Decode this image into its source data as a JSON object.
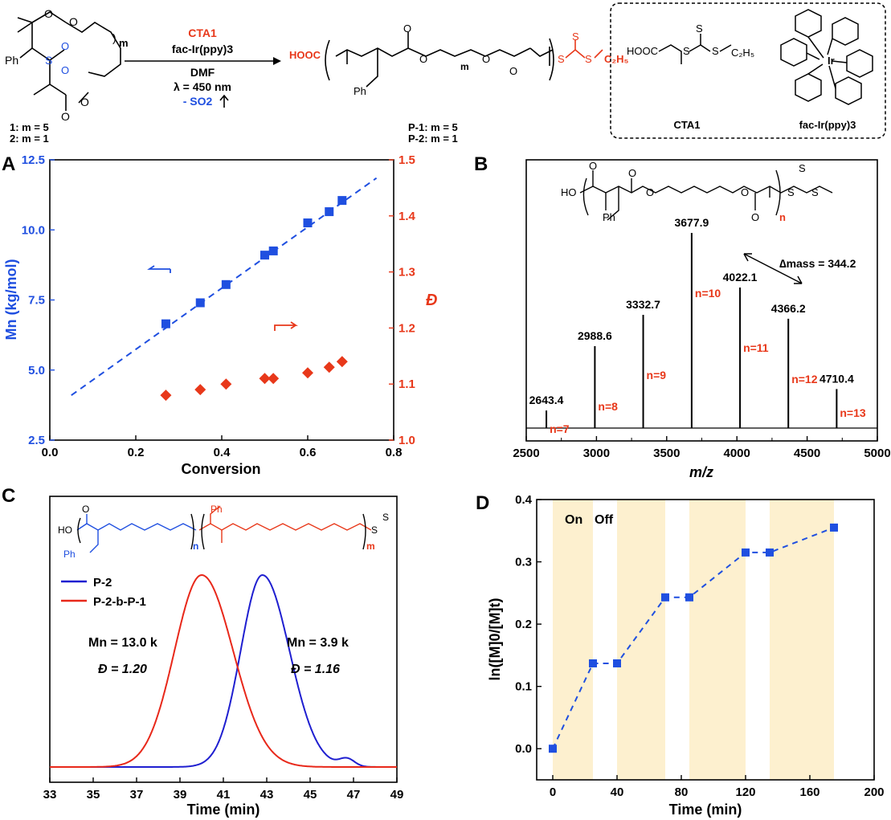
{
  "scheme": {
    "reagent_top": "CTA1",
    "catalyst": "fac-Ir(ppy)3",
    "solvent": "DMF",
    "light": "λ = 450 nm",
    "gas": "- SO2",
    "monomer_labels": [
      "1: m = 5",
      "2: m = 1"
    ],
    "polymer_labels": [
      "P-1: m = 5",
      "P-2: m = 1"
    ],
    "box_labels": [
      "CTA1",
      "fac-Ir(ppy)3"
    ],
    "colors": {
      "red": "#e8381a",
      "blue": "#1f4fe0"
    }
  },
  "panels": {
    "A": {
      "letter": "A",
      "chart_data": {
        "type": "scatter",
        "xlabel": "Conversion",
        "ylabel": "Mn (kg/mol)",
        "y2label": "Đ",
        "xlim": [
          0.0,
          0.8
        ],
        "ylim": [
          2.5,
          12.5
        ],
        "y2lim": [
          1.0,
          1.5
        ],
        "xticks": [
          "0.0",
          "0.2",
          "0.4",
          "0.6",
          "0.8"
        ],
        "yticks": [
          "2.5",
          "5.0",
          "7.5",
          "10.0",
          "12.5"
        ],
        "y2ticks": [
          "1.0",
          "1.1",
          "1.2",
          "1.3",
          "1.4",
          "1.5"
        ],
        "series": [
          {
            "axis": "left",
            "color": "#1f4fe0",
            "marker": "square",
            "x": [
              0.27,
              0.35,
              0.41,
              0.5,
              0.52,
              0.6,
              0.65,
              0.68
            ],
            "y": [
              6.65,
              7.4,
              8.05,
              9.1,
              9.25,
              10.25,
              10.65,
              11.05
            ]
          },
          {
            "axis": "right",
            "color": "#e8381a",
            "marker": "diamond",
            "x": [
              0.27,
              0.35,
              0.41,
              0.5,
              0.52,
              0.6,
              0.65,
              0.68
            ],
            "y": [
              1.08,
              1.09,
              1.1,
              1.11,
              1.11,
              1.12,
              1.13,
              1.14
            ]
          }
        ],
        "fit_line": {
          "x": [
            0.05,
            0.76
          ],
          "y": [
            4.1,
            11.85
          ],
          "color": "#1f4fe0",
          "style": "dashed"
        }
      }
    },
    "B": {
      "letter": "B",
      "chart_data": {
        "type": "bar",
        "xlabel": "m/z",
        "xlim": [
          2500,
          5000
        ],
        "xticks": [
          "2500",
          "3000",
          "3500",
          "4000",
          "4500",
          "5000"
        ],
        "peaks": [
          {
            "x": 2643.4,
            "label": "2643.4",
            "n": "n=7",
            "rel": 0.09
          },
          {
            "x": 2988.6,
            "label": "2988.6",
            "n": "n=8",
            "rel": 0.42
          },
          {
            "x": 3332.7,
            "label": "3332.7",
            "n": "n=9",
            "rel": 0.58
          },
          {
            "x": 3677.9,
            "label": "3677.9",
            "n": "n=10",
            "rel": 1.0
          },
          {
            "x": 4022.1,
            "label": "4022.1",
            "n": "n=11",
            "rel": 0.72
          },
          {
            "x": 4366.2,
            "label": "4366.2",
            "n": "n=12",
            "rel": 0.56
          },
          {
            "x": 4710.4,
            "label": "4710.4",
            "n": "n=13",
            "rel": 0.2
          }
        ],
        "annotation": "∆mass = 344.2"
      }
    },
    "C": {
      "letter": "C",
      "chart_data": {
        "type": "line",
        "xlabel": "Time  (min)",
        "xlim": [
          33,
          49
        ],
        "xticks": [
          "33",
          "35",
          "37",
          "39",
          "41",
          "43",
          "45",
          "47",
          "49"
        ],
        "series": [
          {
            "name": "P-2",
            "color": "#1f1fd0",
            "peak": 42.8,
            "sigmaL": 1.0,
            "sigmaR": 1.25,
            "height": 1.0
          },
          {
            "name": "P-2-b-P-1",
            "color": "#e8281a",
            "peak": 40.0,
            "sigmaL": 1.25,
            "sigmaR": 1.45,
            "height": 1.0
          }
        ],
        "annotations": [
          {
            "mn": "Mn = 13.0 k",
            "d": "Đ = 1.20"
          },
          {
            "mn": "Mn = 3.9 k",
            "d": "Đ = 1.16"
          }
        ]
      }
    },
    "D": {
      "letter": "D",
      "chart_data": {
        "type": "line",
        "xlabel": "Time (min)",
        "ylabel": "ln([M]0/[M]t)",
        "xlim": [
          -10,
          200
        ],
        "ylim": [
          -0.05,
          0.4
        ],
        "xticks": [
          "0",
          "40",
          "80",
          "120",
          "160",
          "200"
        ],
        "yticks": [
          "0.0",
          "0.1",
          "0.2",
          "0.3",
          "0.4"
        ],
        "on_periods": [
          [
            0,
            25
          ],
          [
            40,
            70
          ],
          [
            85,
            120
          ],
          [
            135,
            175
          ]
        ],
        "on_label": "On",
        "off_label": "Off",
        "x": [
          0,
          25,
          40,
          70,
          85,
          120,
          135,
          175
        ],
        "y": [
          0.0,
          0.137,
          0.137,
          0.243,
          0.243,
          0.315,
          0.315,
          0.355
        ],
        "color": "#1f4fe0"
      }
    }
  }
}
